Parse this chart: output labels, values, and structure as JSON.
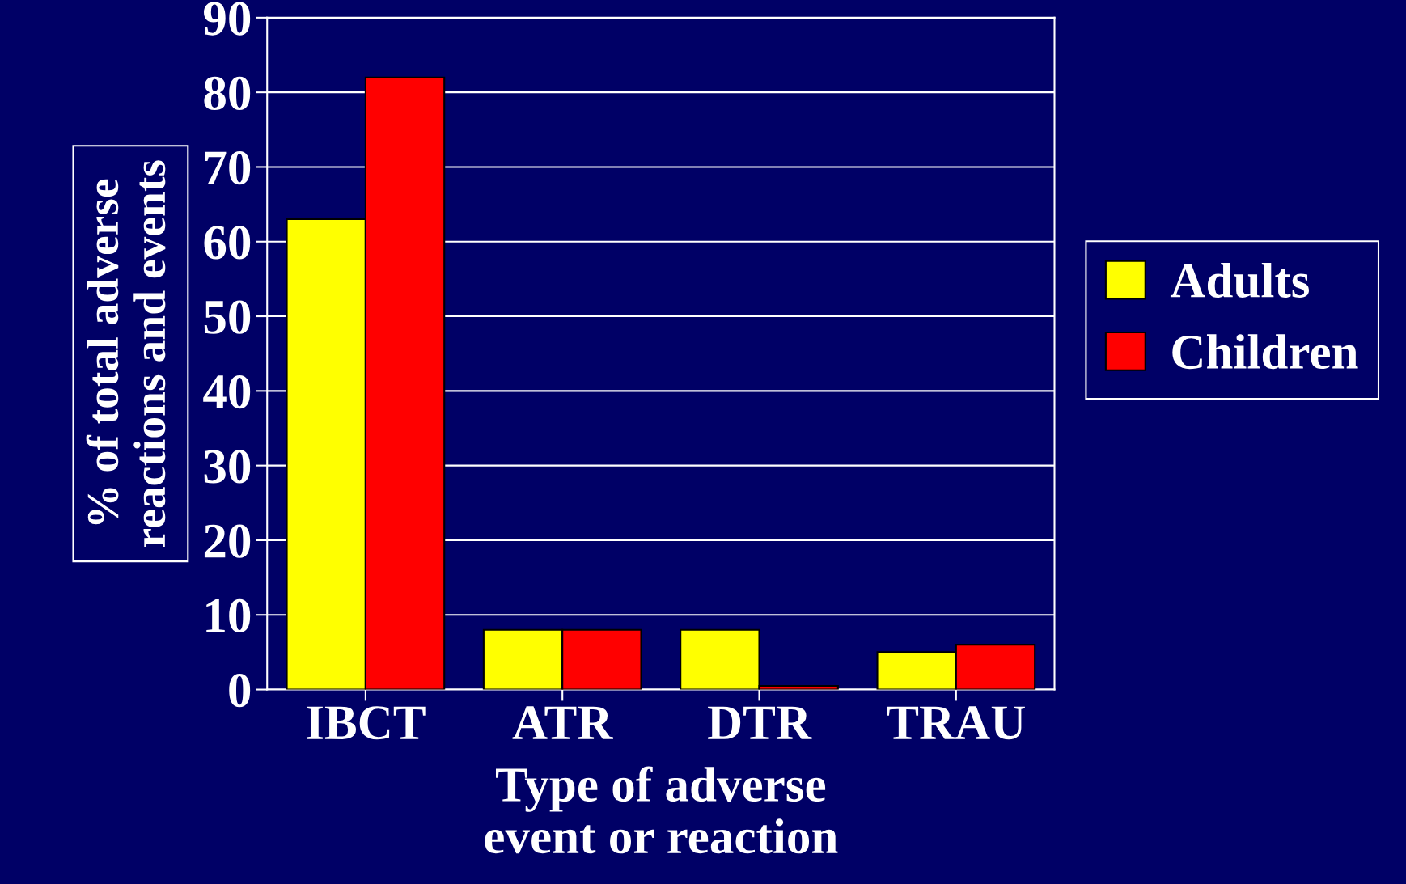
{
  "chart_data": {
    "type": "bar",
    "xlabel": "Type of adverse event or reaction",
    "ylabel": "% of total adverse reactions and events",
    "categories": [
      "IBCT",
      "ATR",
      "DTR",
      "TRAU"
    ],
    "series": [
      {
        "name": "Adults",
        "color": "#ffff00",
        "values": [
          63,
          8,
          8,
          5
        ]
      },
      {
        "name": "Children",
        "color": "#ff0000",
        "values": [
          82,
          8,
          0.5,
          6
        ]
      }
    ],
    "ylim": [
      0,
      90
    ],
    "yticks": [
      0,
      10,
      20,
      30,
      40,
      50,
      60,
      70,
      80,
      90
    ],
    "grid": "y",
    "legend": "right"
  }
}
